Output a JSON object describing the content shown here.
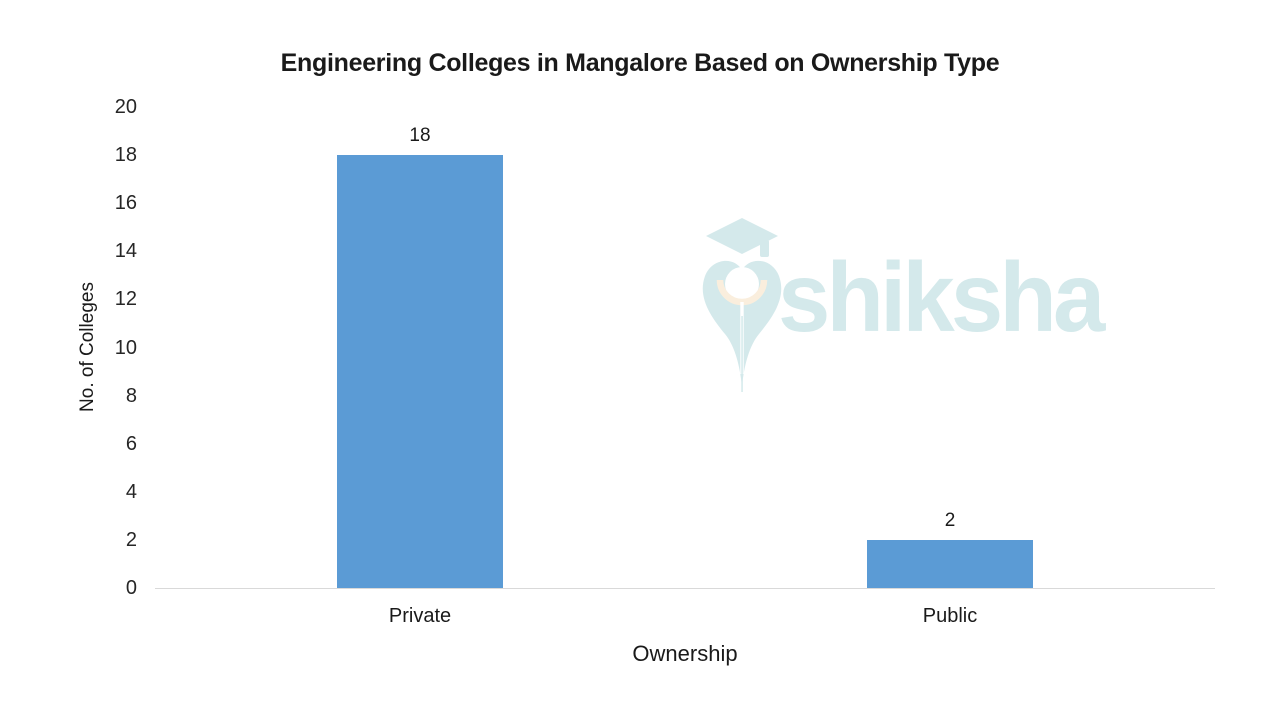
{
  "title": "Engineering Colleges in Mangalore Based on Ownership Type",
  "watermark": {
    "brand": "shiksha",
    "teal": "#d4e9eb",
    "cream": "#faeedd"
  },
  "chart_data": {
    "type": "bar",
    "categories": [
      "Private",
      "Public"
    ],
    "values": [
      18,
      2
    ],
    "data_labels": [
      "18",
      "2"
    ],
    "title": "Engineering Colleges in Mangalore Based on Ownership Type",
    "xlabel": "Ownership",
    "ylabel": "No. of Colleges",
    "ylim": [
      0,
      20
    ],
    "ytick_step": 2,
    "yticks": [
      0,
      2,
      4,
      6,
      8,
      10,
      12,
      14,
      16,
      18,
      20
    ],
    "grid": false,
    "legend": "none",
    "bar_color": "#5B9BD5",
    "axis_line_color": "#D9D9D9",
    "background": "#FFFFFF"
  }
}
